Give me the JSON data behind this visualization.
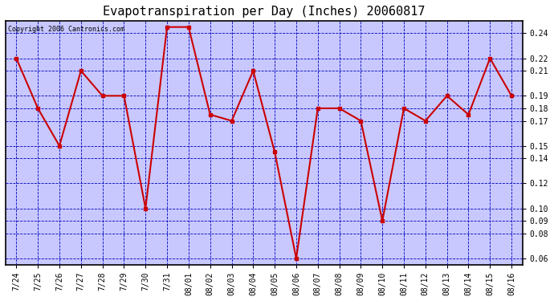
{
  "title": "Evapotranspiration per Day (Inches) 20060817",
  "copyright_text": "Copyright 2006 Cantronics.com",
  "x_labels": [
    "7/24",
    "7/25",
    "7/26",
    "7/27",
    "7/28",
    "7/29",
    "7/30",
    "7/31",
    "08/01",
    "08/02",
    "08/03",
    "08/04",
    "08/05",
    "08/06",
    "08/07",
    "08/08",
    "08/09",
    "08/10",
    "08/11",
    "08/12",
    "08/13",
    "08/14",
    "08/15",
    "08/16"
  ],
  "y_values": [
    0.22,
    0.18,
    0.15,
    0.21,
    0.19,
    0.19,
    0.1,
    0.245,
    0.245,
    0.175,
    0.17,
    0.21,
    0.145,
    0.06,
    0.18,
    0.18,
    0.17,
    0.09,
    0.18,
    0.17,
    0.19,
    0.175,
    0.22,
    0.19
  ],
  "line_color": "#cc0000",
  "marker": "s",
  "marker_size": 2.5,
  "line_width": 1.5,
  "figure_bg_color": "#ffffff",
  "plot_bg_color": "#c8c8ff",
  "grid_color": "#0000bb",
  "grid_style": "--",
  "grid_linewidth": 0.6,
  "ylim": [
    0.055,
    0.25
  ],
  "yticks": [
    0.06,
    0.08,
    0.09,
    0.1,
    0.12,
    0.14,
    0.15,
    0.17,
    0.18,
    0.19,
    0.21,
    0.22,
    0.24
  ],
  "title_fontsize": 11,
  "tick_fontsize": 7,
  "copyright_fontsize": 6,
  "axes_border_color": "#000000"
}
